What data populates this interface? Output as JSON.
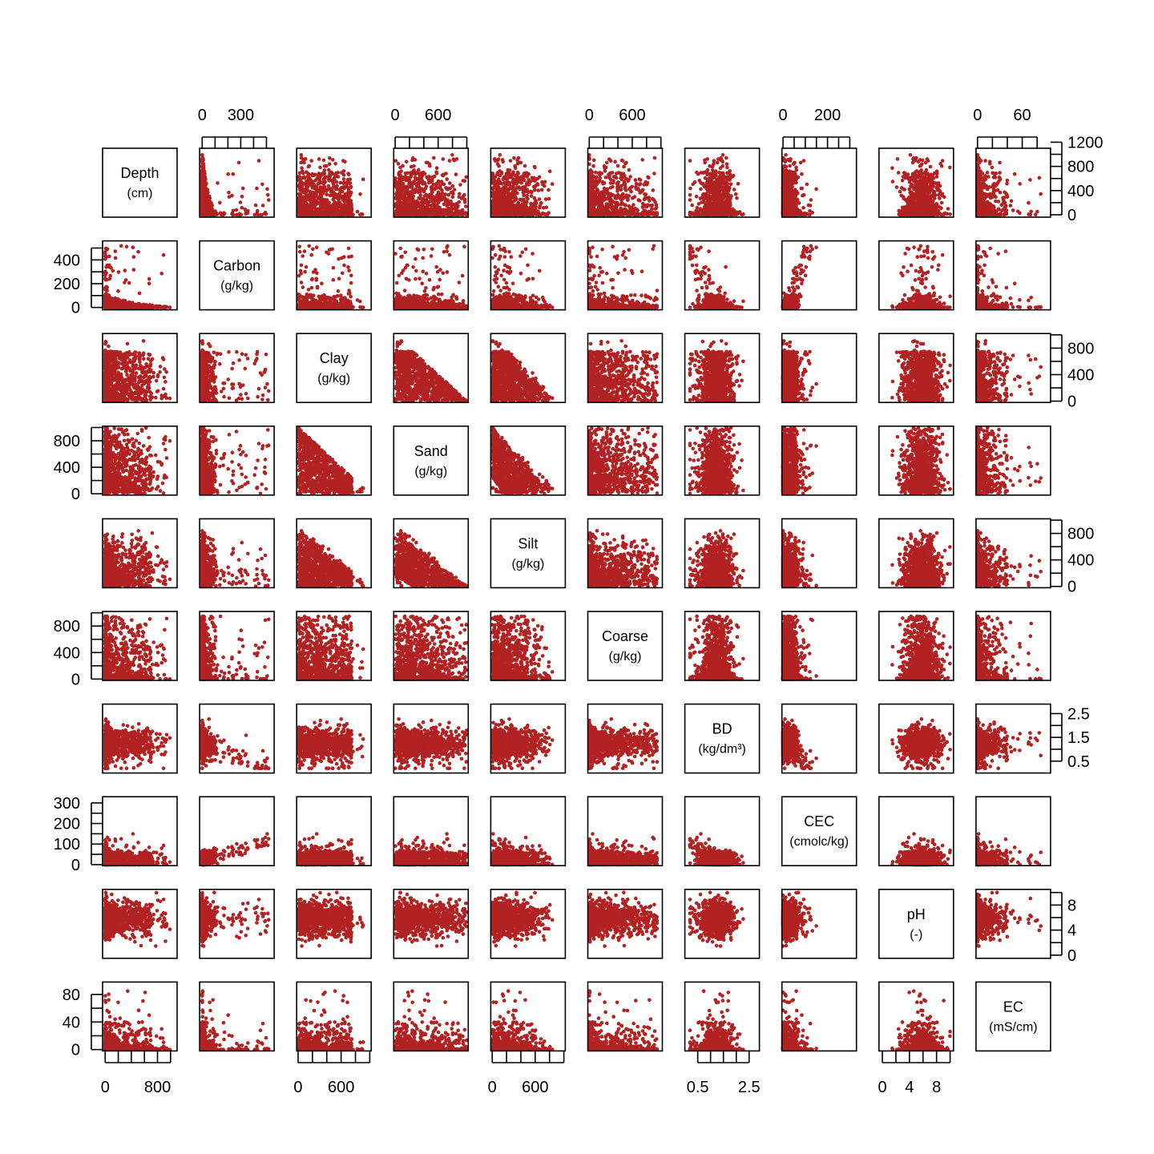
{
  "chart_data": {
    "type": "scatter",
    "kind": "scatterplot-matrix",
    "point_color": "#B22222",
    "variables": [
      {
        "name": "Depth",
        "unit": "(cm)",
        "lim": [
          -40,
          1100
        ],
        "axis_ticks": [
          0,
          200,
          400,
          600,
          800,
          1000
        ],
        "axis_labels": [
          0,
          800
        ]
      },
      {
        "name": "Carbon",
        "unit": "(g/kg)",
        "lim": [
          -20,
          560
        ],
        "axis_ticks": [
          0,
          100,
          200,
          300,
          400,
          500
        ],
        "axis_labels": [
          0,
          300
        ]
      },
      {
        "name": "Clay",
        "unit": "(g/kg)",
        "lim": [
          -20,
          1020
        ],
        "axis_ticks": [
          0,
          200,
          400,
          600,
          800,
          1000
        ],
        "axis_labels": [
          0,
          600
        ]
      },
      {
        "name": "Sand",
        "unit": "(g/kg)",
        "lim": [
          -20,
          1020
        ],
        "axis_ticks": [
          0,
          200,
          400,
          600,
          800,
          1000
        ],
        "axis_labels": [
          0,
          600
        ]
      },
      {
        "name": "Silt",
        "unit": "(g/kg)",
        "lim": [
          -20,
          1020
        ],
        "axis_ticks": [
          0,
          200,
          400,
          600,
          800,
          1000
        ],
        "axis_labels": [
          0,
          600
        ]
      },
      {
        "name": "Coarse",
        "unit": "(g/kg)",
        "lim": [
          -20,
          1020
        ],
        "axis_ticks": [
          0,
          200,
          400,
          600,
          800,
          1000
        ],
        "axis_labels": [
          0,
          600
        ]
      },
      {
        "name": "BD",
        "unit": "(kg/dm³)",
        "lim": [
          0.0,
          2.9
        ],
        "axis_ticks": [
          0.5,
          1.0,
          1.5,
          2.0,
          2.5
        ],
        "axis_labels": [
          0.5,
          2.5
        ]
      },
      {
        "name": "CEC",
        "unit": "(cmolc/kg)",
        "lim": [
          -5,
          330
        ],
        "axis_ticks": [
          0,
          50,
          100,
          150,
          200,
          250,
          300
        ],
        "axis_labels": [
          0,
          200
        ]
      },
      {
        "name": "pH",
        "unit": "(-)",
        "lim": [
          -0.5,
          10.5
        ],
        "axis_ticks": [
          0,
          2,
          4,
          6,
          8,
          10
        ],
        "axis_labels": [
          0,
          4,
          8
        ]
      },
      {
        "name": "EC",
        "unit": "(mS/cm)",
        "lim": [
          -2,
          98
        ],
        "axis_ticks": [
          0,
          20,
          40,
          60,
          80
        ],
        "axis_labels": [
          0,
          60
        ]
      }
    ],
    "axes": {
      "top_columns": [
        1,
        3,
        5,
        7,
        9
      ],
      "bottom_columns": [
        0,
        2,
        4,
        6,
        8
      ],
      "left_rows": [
        1,
        3,
        5,
        7,
        9
      ],
      "right_rows": [
        0,
        2,
        4,
        6,
        8
      ],
      "right_ticks": {
        "0": {
          "ticks": [
            0,
            200,
            400,
            600,
            800,
            1000,
            1200
          ],
          "labels": [
            0,
            400,
            800,
            1200
          ]
        },
        "2": {
          "ticks": [
            0,
            200,
            400,
            600,
            800,
            1000
          ],
          "labels": [
            0,
            400,
            800
          ]
        },
        "4": {
          "ticks": [
            0,
            200,
            400,
            600,
            800,
            1000
          ],
          "labels": [
            0,
            400,
            800
          ]
        },
        "6": {
          "ticks": [
            0.5,
            1.0,
            1.5,
            2.0,
            2.5
          ],
          "labels": [
            0.5,
            1.5,
            2.5
          ]
        },
        "8": {
          "ticks": [
            0,
            2,
            4,
            6,
            8,
            10
          ],
          "labels": [
            0,
            4,
            8
          ]
        }
      },
      "left_ticks": {
        "1": {
          "ticks": [
            0,
            100,
            200,
            300,
            400,
            500
          ],
          "labels": [
            0,
            200,
            400
          ]
        },
        "3": {
          "ticks": [
            0,
            200,
            400,
            600,
            800,
            1000
          ],
          "labels": [
            0,
            400,
            800
          ]
        },
        "5": {
          "ticks": [
            0,
            200,
            400,
            600,
            800,
            1000
          ],
          "labels": [
            0,
            400,
            800
          ]
        },
        "7": {
          "ticks": [
            0,
            50,
            100,
            150,
            200,
            250,
            300
          ],
          "labels": [
            0,
            100,
            200,
            300
          ]
        },
        "9": {
          "ticks": [
            0,
            20,
            40,
            60,
            80
          ],
          "labels": [
            0,
            40,
            80
          ]
        }
      }
    },
    "sample_points": 900
  }
}
